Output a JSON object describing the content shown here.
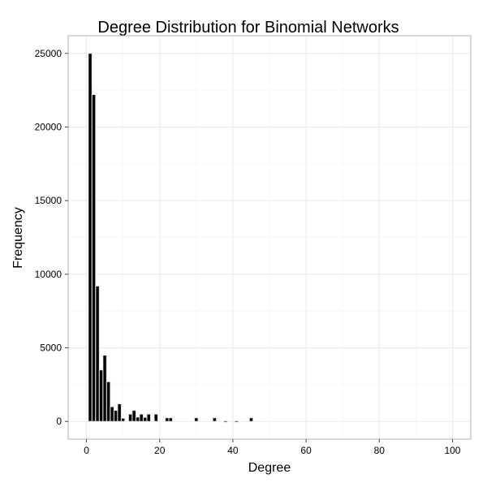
{
  "chart_data": {
    "type": "bar",
    "title": "Degree Distribution for Binomial Networks",
    "xlabel": "Degree",
    "ylabel": "Frequency",
    "xlim": [
      -5,
      105
    ],
    "ylim": [
      -1200,
      26200
    ],
    "x_ticks": [
      0,
      20,
      40,
      60,
      80,
      100
    ],
    "y_ticks": [
      0,
      5000,
      10000,
      15000,
      20000,
      25000
    ],
    "x_tick_labels": [
      "0",
      "20",
      "40",
      "60",
      "80",
      "100"
    ],
    "y_tick_labels": [
      "0",
      "5000",
      "10000",
      "15000",
      "20000",
      "25000"
    ],
    "grid": true,
    "bar_width": 1,
    "x": [
      1,
      2,
      3,
      4,
      5,
      6,
      7,
      8,
      9,
      10,
      12,
      13,
      14,
      15,
      16,
      17,
      19,
      22,
      23,
      30,
      35,
      38,
      41,
      45
    ],
    "values": [
      25000,
      22200,
      9200,
      3500,
      4500,
      2700,
      1000,
      750,
      1200,
      220,
      500,
      750,
      300,
      500,
      280,
      500,
      500,
      250,
      250,
      250,
      250,
      40,
      40,
      250
    ]
  },
  "colors": {
    "bar_fill": "#000000",
    "bar_outline": "#e6e6e6",
    "grid": "#ebebeb",
    "panel_border": "#b3b3b3"
  }
}
